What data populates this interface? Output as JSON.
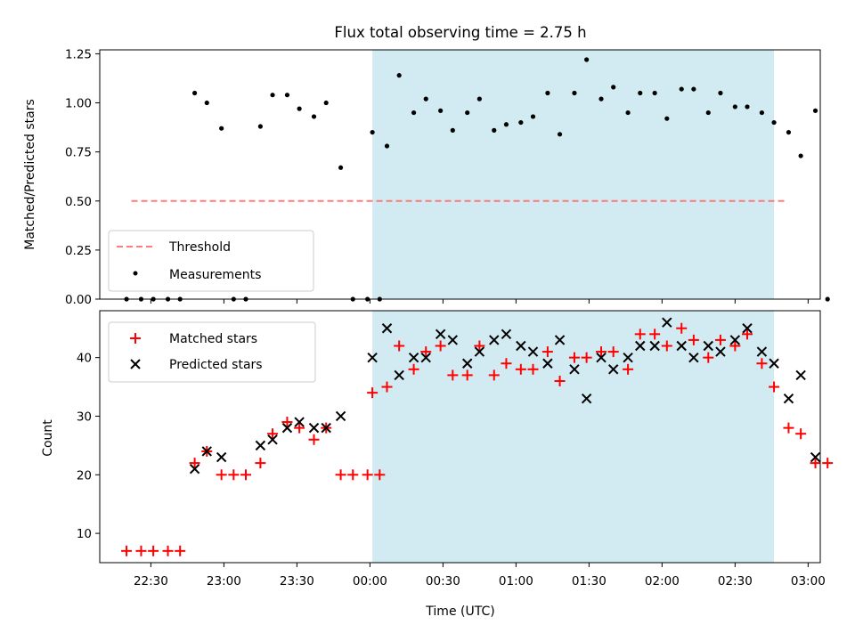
{
  "chart_data": {
    "title": "Flux total observing time = 2.75 h",
    "type": "scatter",
    "xlabel": "Time (UTC)",
    "x_ticks": [
      "22:30",
      "23:00",
      "23:30",
      "00:00",
      "00:30",
      "01:00",
      "01:30",
      "02:00",
      "02:30",
      "03:00"
    ],
    "xlim": [
      "22:09",
      "03:05"
    ],
    "highlight_span": {
      "start": "00:01",
      "end": "02:46",
      "color": "#add8e6"
    },
    "top_panel": {
      "ylabel": "Matched/Predicted stars",
      "ylim": [
        0,
        1.27
      ],
      "y_ticks": [
        "0.00",
        "0.25",
        "0.50",
        "0.75",
        "1.00",
        "1.25"
      ],
      "legend_position": "lower left",
      "threshold": {
        "name": "Threshold",
        "value": 0.5,
        "from": "22:22",
        "to": "02:51",
        "color": "#ff6666"
      },
      "measurements": {
        "name": "Measurements",
        "color": "#000000",
        "points": [
          [
            "22:20",
            0.0
          ],
          [
            "22:26",
            0.0
          ],
          [
            "22:31",
            0.0
          ],
          [
            "22:37",
            0.0
          ],
          [
            "22:42",
            0.0
          ],
          [
            "22:48",
            1.05
          ],
          [
            "22:53",
            1.0
          ],
          [
            "22:59",
            0.87
          ],
          [
            "23:04",
            0.0
          ],
          [
            "23:09",
            0.0
          ],
          [
            "23:15",
            0.88
          ],
          [
            "23:20",
            1.04
          ],
          [
            "23:26",
            1.04
          ],
          [
            "23:31",
            0.97
          ],
          [
            "23:37",
            0.93
          ],
          [
            "23:42",
            1.0
          ],
          [
            "23:48",
            0.67
          ],
          [
            "23:53",
            0.0
          ],
          [
            "23:59",
            0.0
          ],
          [
            "00:04",
            0.0
          ],
          [
            "00:01",
            0.85
          ],
          [
            "00:07",
            0.78
          ],
          [
            "00:12",
            1.14
          ],
          [
            "00:18",
            0.95
          ],
          [
            "00:23",
            1.02
          ],
          [
            "00:29",
            0.96
          ],
          [
            "00:34",
            0.86
          ],
          [
            "00:40",
            0.95
          ],
          [
            "00:45",
            1.02
          ],
          [
            "00:51",
            0.86
          ],
          [
            "00:56",
            0.89
          ],
          [
            "01:02",
            0.9
          ],
          [
            "01:07",
            0.93
          ],
          [
            "01:13",
            1.05
          ],
          [
            "01:18",
            0.84
          ],
          [
            "01:24",
            1.05
          ],
          [
            "01:29",
            1.22
          ],
          [
            "01:35",
            1.02
          ],
          [
            "01:40",
            1.08
          ],
          [
            "01:46",
            0.95
          ],
          [
            "01:51",
            1.05
          ],
          [
            "01:57",
            1.05
          ],
          [
            "02:02",
            0.92
          ],
          [
            "02:08",
            1.07
          ],
          [
            "02:13",
            1.07
          ],
          [
            "02:19",
            0.95
          ],
          [
            "02:24",
            1.05
          ],
          [
            "02:30",
            0.98
          ],
          [
            "02:35",
            0.98
          ],
          [
            "02:41",
            0.95
          ],
          [
            "02:46",
            0.9
          ],
          [
            "02:52",
            0.85
          ],
          [
            "02:57",
            0.73
          ],
          [
            "03:03",
            0.96
          ],
          [
            "03:08",
            0.0
          ]
        ]
      }
    },
    "bottom_panel": {
      "ylabel": "Count",
      "ylim": [
        5,
        48
      ],
      "y_ticks": [
        "10",
        "20",
        "30",
        "40"
      ],
      "legend_position": "upper left",
      "matched": {
        "name": "Matched stars",
        "color": "#ff0000",
        "points": [
          [
            "22:20",
            7
          ],
          [
            "22:26",
            7
          ],
          [
            "22:31",
            7
          ],
          [
            "22:37",
            7
          ],
          [
            "22:42",
            7
          ],
          [
            "22:48",
            22
          ],
          [
            "22:53",
            24
          ],
          [
            "22:59",
            20
          ],
          [
            "23:04",
            20
          ],
          [
            "23:09",
            20
          ],
          [
            "23:15",
            22
          ],
          [
            "23:20",
            27
          ],
          [
            "23:26",
            29
          ],
          [
            "23:31",
            28
          ],
          [
            "23:37",
            26
          ],
          [
            "23:42",
            28
          ],
          [
            "23:48",
            20
          ],
          [
            "23:53",
            20
          ],
          [
            "23:59",
            20
          ],
          [
            "00:04",
            20
          ],
          [
            "00:01",
            34
          ],
          [
            "00:07",
            35
          ],
          [
            "00:12",
            42
          ],
          [
            "00:18",
            38
          ],
          [
            "00:23",
            41
          ],
          [
            "00:29",
            42
          ],
          [
            "00:34",
            37
          ],
          [
            "00:40",
            37
          ],
          [
            "00:45",
            42
          ],
          [
            "00:51",
            37
          ],
          [
            "00:56",
            39
          ],
          [
            "01:02",
            38
          ],
          [
            "01:07",
            38
          ],
          [
            "01:13",
            41
          ],
          [
            "01:18",
            36
          ],
          [
            "01:24",
            40
          ],
          [
            "01:29",
            40
          ],
          [
            "01:35",
            41
          ],
          [
            "01:40",
            41
          ],
          [
            "01:46",
            38
          ],
          [
            "01:51",
            44
          ],
          [
            "01:57",
            44
          ],
          [
            "02:02",
            42
          ],
          [
            "02:08",
            45
          ],
          [
            "02:13",
            43
          ],
          [
            "02:19",
            40
          ],
          [
            "02:24",
            43
          ],
          [
            "02:30",
            42
          ],
          [
            "02:35",
            44
          ],
          [
            "02:41",
            39
          ],
          [
            "02:46",
            35
          ],
          [
            "02:52",
            28
          ],
          [
            "02:57",
            27
          ],
          [
            "03:03",
            22
          ],
          [
            "03:08",
            22
          ]
        ]
      },
      "predicted": {
        "name": "Predicted stars",
        "color": "#000000",
        "points": [
          [
            "22:48",
            21
          ],
          [
            "22:53",
            24
          ],
          [
            "22:59",
            23
          ],
          [
            "23:15",
            25
          ],
          [
            "23:20",
            26
          ],
          [
            "23:26",
            28
          ],
          [
            "23:31",
            29
          ],
          [
            "23:37",
            28
          ],
          [
            "23:42",
            28
          ],
          [
            "23:48",
            30
          ],
          [
            "00:01",
            40
          ],
          [
            "00:07",
            45
          ],
          [
            "00:12",
            37
          ],
          [
            "00:18",
            40
          ],
          [
            "00:23",
            40
          ],
          [
            "00:29",
            44
          ],
          [
            "00:34",
            43
          ],
          [
            "00:40",
            39
          ],
          [
            "00:45",
            41
          ],
          [
            "00:51",
            43
          ],
          [
            "00:56",
            44
          ],
          [
            "01:02",
            42
          ],
          [
            "01:07",
            41
          ],
          [
            "01:13",
            39
          ],
          [
            "01:18",
            43
          ],
          [
            "01:24",
            38
          ],
          [
            "01:29",
            33
          ],
          [
            "01:35",
            40
          ],
          [
            "01:40",
            38
          ],
          [
            "01:46",
            40
          ],
          [
            "01:51",
            42
          ],
          [
            "01:57",
            42
          ],
          [
            "02:02",
            46
          ],
          [
            "02:08",
            42
          ],
          [
            "02:13",
            40
          ],
          [
            "02:19",
            42
          ],
          [
            "02:24",
            41
          ],
          [
            "02:30",
            43
          ],
          [
            "02:35",
            45
          ],
          [
            "02:41",
            41
          ],
          [
            "02:46",
            39
          ],
          [
            "02:52",
            33
          ],
          [
            "02:57",
            37
          ],
          [
            "03:03",
            23
          ]
        ]
      }
    }
  }
}
